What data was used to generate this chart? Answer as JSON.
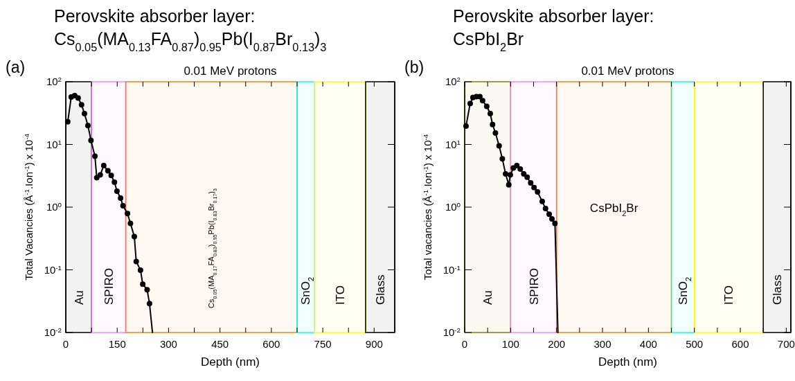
{
  "chart_data": [
    {
      "type": "line",
      "title": "Perovskite absorber layer:\nCs$_{0.05}$(MA$_{0.13}$FA$_{0.87}$)$_{0.95}$Pb(I$_{0.87}$Br$_{0.13}$)$_{3}$",
      "subtitle": "0.01 MeV protons",
      "annotations": [
        "(a)"
      ],
      "xlabel": "Depth (nm)",
      "ylabel": "Total Vacancies (Å$^{-1}$.Ion$^{-1}$) x 10$^{-4}$",
      "log": "y",
      "marker": "circle",
      "line_style": "solid",
      "xlim": [
        0,
        960
      ],
      "ylim": [
        0.01,
        100
      ],
      "xticks": [
        0,
        {
          "value": 75,
          "label": null
        },
        150,
        {
          "value": 225,
          "label": null
        },
        300,
        {
          "value": 375,
          "label": null
        },
        450,
        {
          "value": 525,
          "label": null
        },
        600,
        {
          "value": 675,
          "label": null
        },
        750,
        {
          "value": 825,
          "label": null
        },
        900
      ],
      "yticks": [
        {
          "value": 0.01,
          "label": "10$^{-2}$"
        },
        {
          "value": 0.1,
          "label": "10$^{-1}$"
        },
        {
          "value": 1,
          "label": "10$^{0}$"
        },
        {
          "value": 10,
          "label": "10$^{1}$"
        },
        {
          "value": 100,
          "label": "10$^{2}$"
        }
      ],
      "bands": [
        {
          "axis": "x",
          "from": 0,
          "to": 75,
          "label": "Au",
          "color": "#000000"
        },
        {
          "axis": "x",
          "from": 75,
          "to": 175,
          "label": "SPIRO",
          "color": "#ff80ff"
        },
        {
          "axis": "x",
          "from": 175,
          "to": 675,
          "label": "Cs$_{0.05}$(MA$_{0.17}$FA$_{0.83}$)$_{0.95}$Pb(I$_{0.83}$Br$_{0.17}$)$_{3}$",
          "color": "#ff8000"
        },
        {
          "axis": "x",
          "from": 675,
          "to": 725,
          "label": "SnO$_{2}$",
          "color": "#00ffff"
        },
        {
          "axis": "x",
          "from": 725,
          "to": 875,
          "label": "ITO",
          "color": "#ffff00"
        },
        {
          "axis": "x",
          "from": 875,
          "to": 960,
          "label": "Glass",
          "color": "#000000"
        }
      ],
      "series": [
        {
          "color": "#000000",
          "x": [
            5.7,
            15.9,
            26,
            36,
            46,
            54.5,
            64.6,
            73.5,
            85,
            90.4,
            100.6,
            110.8,
            123,
            132.5,
            142,
            149.4,
            160,
            167,
            180,
            188.7,
            200,
            205.6,
            218,
            224.6,
            237.4,
            244.3
          ],
          "values": [
            23,
            57,
            60,
            55,
            43,
            31,
            20,
            11.6,
            6.5,
            2.95,
            3.27,
            4.6,
            3.8,
            3.2,
            2.5,
            1.8,
            1.39,
            1.05,
            0.79,
            0.55,
            0.34,
            0.136,
            0.099,
            0.059,
            0.048,
            0.029
          ]
        },
        {
          "color": "#000000",
          "marker": "none",
          "x": [
            244.3,
            253
          ],
          "values": [
            0.029,
            0.01
          ]
        }
      ]
    },
    {
      "type": "line",
      "title": "Perovskite absorber layer:\nCsPbI$_{2}$Br",
      "subtitle": "0.01 MeV protons",
      "annotations": [
        "(b)"
      ],
      "xlabel": "Depth (nm)",
      "ylabel": "Total vacancies (Å$^{-1}$.Ion$^{-1}$) x 10$^{-4}$",
      "log": "y",
      "marker": "circle",
      "line_style": "solid",
      "xlim": [
        0,
        710
      ],
      "ylim": [
        0.01,
        100
      ],
      "xticks": [
        0,
        {
          "value": 50,
          "label": null
        },
        100,
        {
          "value": 150,
          "label": null
        },
        200,
        {
          "value": 250,
          "label": null
        },
        300,
        {
          "value": 350,
          "label": null
        },
        400,
        {
          "value": 450,
          "label": null
        },
        500,
        {
          "value": 550,
          "label": null
        },
        600,
        {
          "value": 650,
          "label": null
        },
        700
      ],
      "yticks": [
        {
          "value": 0.01,
          "label": "10$^{-2}$"
        },
        {
          "value": 0.1,
          "label": "10$^{-1}$"
        },
        {
          "value": 1,
          "label": "10$^{0}$"
        },
        {
          "value": 10,
          "label": "10$^{1}$"
        },
        {
          "value": 100,
          "label": "10$^{2}$"
        }
      ],
      "bands": [
        {
          "axis": "x",
          "from": 0,
          "to": 100,
          "label": "Au",
          "color": "#808000"
        },
        {
          "axis": "x",
          "from": 100,
          "to": 200,
          "label": "SPIRO",
          "color": "#ff80ff"
        },
        {
          "axis": "x",
          "from": 200,
          "to": 450,
          "label": "CsPbI$_{2}$Br",
          "color": "#ff8000"
        },
        {
          "axis": "x",
          "from": 450,
          "to": 500,
          "label": "SnO$_{2}$",
          "color": "#00ffff"
        },
        {
          "axis": "x",
          "from": 500,
          "to": 650,
          "label": "ITO",
          "color": "#ffff00"
        },
        {
          "axis": "x",
          "from": 650,
          "to": 710,
          "label": "Glass",
          "color": "#000000"
        }
      ],
      "series": [
        {
          "color": "#000000",
          "x": [
            2.9,
            12,
            18,
            25.5,
            33,
            39,
            48,
            55.7,
            60.7,
            67,
            75,
            82,
            89,
            96,
            99.4,
            106,
            113.5,
            121,
            128.6,
            136,
            143.7,
            151,
            158.6,
            168.8,
            176,
            184,
            190,
            196.5
          ],
          "values": [
            19.6,
            45,
            56,
            58,
            58,
            50,
            40.5,
            31,
            20.8,
            15.2,
            9.5,
            5.9,
            3.4,
            2.27,
            3.27,
            4.2,
            4.6,
            4.05,
            3.4,
            3.0,
            2.43,
            2.05,
            1.75,
            1.23,
            0.95,
            0.77,
            0.65,
            0.55
          ]
        },
        {
          "color": "#000000",
          "marker": "none",
          "x": [
            196.5,
            203
          ],
          "values": [
            0.55,
            0.01
          ]
        }
      ]
    }
  ]
}
